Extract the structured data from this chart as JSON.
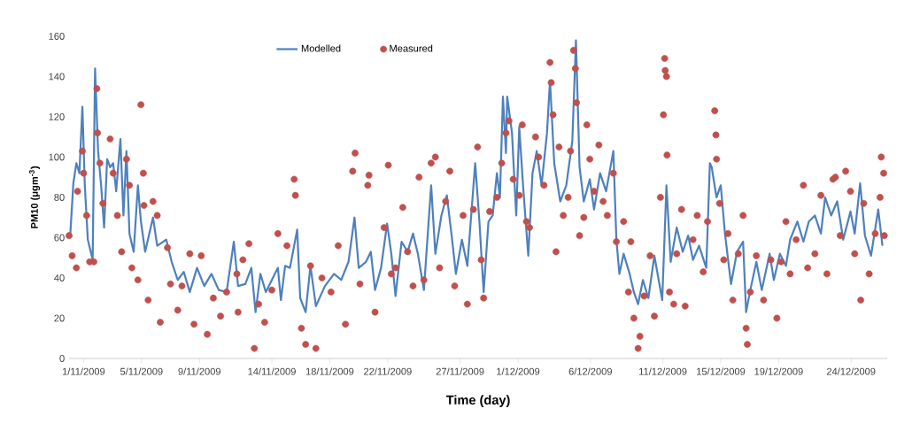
{
  "chart_data": {
    "type": "line",
    "xlabel": "Time  (day)",
    "ylabel": "PM10 (μgm$^{-3}$)",
    "xlim": [
      "2009-10-31T00:00",
      "2009-12-26T12:00"
    ],
    "ylim": [
      0,
      160
    ],
    "yticks": [
      0,
      20,
      40,
      60,
      80,
      100,
      120,
      140,
      160
    ],
    "xticks": [
      {
        "value": "2009-11-01",
        "label": "1/11/2009"
      },
      {
        "value": "2009-11-05",
        "label": "5/11/2009"
      },
      {
        "value": "2009-11-09",
        "label": "9/11/2009"
      },
      {
        "value": "2009-11-14",
        "label": "14/11/2009"
      },
      {
        "value": "2009-11-18",
        "label": "18/11/2009"
      },
      {
        "value": "2009-11-22",
        "label": "22/11/2009"
      },
      {
        "value": "2009-11-27",
        "label": "27/11/2009"
      },
      {
        "value": "2009-12-01",
        "label": "1/12/2009"
      },
      {
        "value": "2009-12-06",
        "label": "6/12/2009"
      },
      {
        "value": "2009-12-11",
        "label": "11/12/2009"
      },
      {
        "value": "2009-12-15",
        "label": "15/12/2009"
      },
      {
        "value": "2009-12-19",
        "label": "19/12/2009"
      },
      {
        "value": "2009-12-24",
        "label": "24/12/2009"
      }
    ],
    "legend": "top",
    "series": [
      {
        "name": "Modelled",
        "color": "#4f81bd",
        "line_style": "solid",
        "x": [
          "2009-10-31T02:00",
          "2009-10-31T07:00",
          "2009-10-31T12:00",
          "2009-10-31T17:00",
          "2009-10-31T22:00",
          "2009-11-01T02:00",
          "2009-11-01T07:00",
          "2009-11-01T15:00",
          "2009-11-01T19:00",
          "2009-11-02T00:00",
          "2009-11-02T05:00",
          "2009-11-02T10:00",
          "2009-11-02T15:00",
          "2009-11-02T20:00",
          "2009-11-03T01:00",
          "2009-11-03T06:00",
          "2009-11-03T13:00",
          "2009-11-03T18:00",
          "2009-11-03T23:00",
          "2009-11-04T04:00",
          "2009-11-04T11:00",
          "2009-11-04T18:00",
          "2009-11-04T23:00",
          "2009-11-05T06:00",
          "2009-11-05T19:00",
          "2009-11-06T02:00",
          "2009-11-06T17:00",
          "2009-11-07T02:00",
          "2009-11-07T12:00",
          "2009-11-07T22:00",
          "2009-11-08T08:00",
          "2009-11-08T20:00",
          "2009-11-09T08:00",
          "2009-11-09T20:00",
          "2009-11-10T08:00",
          "2009-11-10T21:00",
          "2009-11-11T09:00",
          "2009-11-11T16:00",
          "2009-11-12T04:00",
          "2009-11-12T14:00",
          "2009-11-12T21:00",
          "2009-11-13T05:00",
          "2009-11-13T14:00",
          "2009-11-14T00:00",
          "2009-11-14T10:00",
          "2009-11-14T15:00",
          "2009-11-14T22:00",
          "2009-11-15T06:00",
          "2009-11-15T18:00",
          "2009-11-15T23:00",
          "2009-11-16T08:00",
          "2009-11-16T16:00",
          "2009-11-17T01:00",
          "2009-11-17T16:00",
          "2009-11-18T07:00",
          "2009-11-18T19:00",
          "2009-11-19T07:00",
          "2009-11-19T17:00",
          "2009-11-20T00:00",
          "2009-11-20T12:00",
          "2009-11-20T20:00",
          "2009-11-21T03:00",
          "2009-11-21T13:00",
          "2009-11-21T23:00",
          "2009-11-22T06:00",
          "2009-11-22T13:00",
          "2009-11-22T23:00",
          "2009-11-23T09:00",
          "2009-11-23T18:00",
          "2009-11-24T02:00",
          "2009-11-24T12:00",
          "2009-11-25T00:00",
          "2009-11-25T07:00",
          "2009-11-25T17:00",
          "2009-11-26T02:00",
          "2009-11-26T10:00",
          "2009-11-26T17:00",
          "2009-11-27T03:00",
          "2009-11-27T12:00",
          "2009-11-28T01:00",
          "2009-11-28T08:00",
          "2009-11-28T15:00",
          "2009-11-28T23:00",
          "2009-11-29T06:00",
          "2009-11-29T13:00",
          "2009-11-29T18:00",
          "2009-11-29T23:00",
          "2009-11-30T04:00",
          "2009-11-30T06:00",
          "2009-11-30T14:00",
          "2009-11-30T21:00",
          "2009-12-01T02:00",
          "2009-12-01T09:00",
          "2009-12-01T17:00",
          "2009-12-02T00:00",
          "2009-12-02T07:00",
          "2009-12-02T15:00",
          "2009-12-03T00:00",
          "2009-12-03T05:00",
          "2009-12-03T12:00",
          "2009-12-03T22:00",
          "2009-12-04T08:00",
          "2009-12-04T18:00",
          "2009-12-05T00:00",
          "2009-12-05T06:00",
          "2009-12-05T13:00",
          "2009-12-05T23:00",
          "2009-12-06T06:00",
          "2009-12-06T16:00",
          "2009-12-07T02:00",
          "2009-12-07T14:00",
          "2009-12-07T19:00",
          "2009-12-08T00:00",
          "2009-12-08T07:00",
          "2009-12-08T17:00",
          "2009-12-09T00:00",
          "2009-12-09T07:00",
          "2009-12-09T15:00",
          "2009-12-10T00:00",
          "2009-12-10T10:00",
          "2009-12-10T23:00",
          "2009-12-11T06:00",
          "2009-12-11T13:00",
          "2009-12-11T23:00",
          "2009-12-12T09:00",
          "2009-12-12T18:00",
          "2009-12-13T02:00",
          "2009-12-13T12:00",
          "2009-12-14T00:00",
          "2009-12-14T06:00",
          "2009-12-14T09:00",
          "2009-12-14T17:00",
          "2009-12-15T00:00",
          "2009-12-15T07:00",
          "2009-12-15T17:00",
          "2009-12-16T03:00",
          "2009-12-16T13:00",
          "2009-12-16T18:00",
          "2009-12-17T01:00",
          "2009-12-17T11:00",
          "2009-12-17T20:00",
          "2009-12-18T09:00",
          "2009-12-18T16:00",
          "2009-12-19T02:00",
          "2009-12-19T12:00",
          "2009-12-19T19:00",
          "2009-12-20T07:00",
          "2009-12-20T17:00",
          "2009-12-21T02:00",
          "2009-12-21T12:00",
          "2009-12-21T22:00",
          "2009-12-22T05:00",
          "2009-12-22T15:00",
          "2009-12-23T01:00",
          "2009-12-23T11:00",
          "2009-12-23T23:00",
          "2009-12-24T06:00",
          "2009-12-24T15:00",
          "2009-12-24T23:00",
          "2009-12-25T09:00",
          "2009-12-25T21:00",
          "2009-12-26T04:00"
        ],
        "values": [
          62,
          87,
          97,
          92,
          125,
          86,
          59,
          49,
          144,
          103,
          86,
          65,
          99,
          95,
          97,
          83,
          109,
          71,
          103,
          62,
          53,
          86,
          68,
          53,
          70,
          56,
          59,
          48,
          39,
          43,
          33,
          45,
          36,
          42,
          34,
          33,
          58,
          36,
          37,
          45,
          23,
          42,
          33,
          39,
          45,
          29,
          46,
          45,
          64,
          30,
          23,
          46,
          26,
          36,
          42,
          39,
          48,
          70,
          45,
          48,
          53,
          34,
          45,
          67,
          52,
          31,
          58,
          53,
          62,
          52,
          34,
          86,
          52,
          71,
          81,
          61,
          42,
          59,
          46,
          97,
          68,
          33,
          68,
          71,
          92,
          80,
          130,
          102,
          130,
          112,
          71,
          115,
          83,
          51,
          92,
          103,
          86,
          112,
          138,
          97,
          78,
          86,
          108,
          158,
          95,
          78,
          89,
          74,
          92,
          83,
          103,
          59,
          42,
          52,
          42,
          33,
          27,
          39,
          30,
          51,
          29,
          86,
          48,
          65,
          53,
          61,
          49,
          56,
          45,
          97,
          95,
          80,
          86,
          62,
          37,
          53,
          58,
          23,
          34,
          48,
          34,
          52,
          39,
          52,
          46,
          59,
          68,
          58,
          68,
          71,
          62,
          80,
          71,
          78,
          59,
          73,
          62,
          87,
          61,
          51,
          74,
          56
        ]
      },
      {
        "name": "Measured",
        "type": "scatter",
        "color": "#c0504d",
        "marker": "circle",
        "x": [
          "2009-10-31T00:00",
          "2009-10-31T05:00",
          "2009-10-31T12:00",
          "2009-10-31T14:00",
          "2009-10-31T22:00",
          "2009-11-01T00:00",
          "2009-11-01T05:00",
          "2009-11-01T10:00",
          "2009-11-01T17:00",
          "2009-11-01T22:00",
          "2009-11-01T23:00",
          "2009-11-02T03:00",
          "2009-11-02T08:00",
          "2009-11-02T20:00",
          "2009-11-03T01:00",
          "2009-11-03T08:00",
          "2009-11-03T15:00",
          "2009-11-03T23:00",
          "2009-11-04T04:00",
          "2009-11-04T08:00",
          "2009-11-04T18:00",
          "2009-11-04T23:00",
          "2009-11-05T03:00",
          "2009-11-05T04:00",
          "2009-11-05T11:00",
          "2009-11-05T19:00",
          "2009-11-06T02:00",
          "2009-11-06T07:00",
          "2009-11-06T19:00",
          "2009-11-07T00:00",
          "2009-11-07T12:00",
          "2009-11-07T19:00",
          "2009-11-08T08:00",
          "2009-11-08T15:00",
          "2009-11-09T03:00",
          "2009-11-09T13:00",
          "2009-11-09T23:00",
          "2009-11-10T11:00",
          "2009-11-10T21:00",
          "2009-11-11T14:00",
          "2009-11-11T16:00",
          "2009-11-12T00:00",
          "2009-11-12T10:00",
          "2009-11-12T19:00",
          "2009-11-13T02:00",
          "2009-11-13T12:00",
          "2009-11-14T00:00",
          "2009-11-14T10:00",
          "2009-11-15T01:00",
          "2009-11-15T13:00",
          "2009-11-15T15:00",
          "2009-11-16T01:00",
          "2009-11-16T08:00",
          "2009-11-16T16:00",
          "2009-11-17T01:00",
          "2009-11-17T11:00",
          "2009-11-18T02:00",
          "2009-11-18T14:00",
          "2009-11-19T02:00",
          "2009-11-19T14:00",
          "2009-11-19T18:00",
          "2009-11-20T02:00",
          "2009-11-20T15:00",
          "2009-11-20T17:00",
          "2009-11-21T03:00",
          "2009-11-21T18:00",
          "2009-11-22T01:00",
          "2009-11-22T06:00",
          "2009-11-22T13:00",
          "2009-11-23T01:00",
          "2009-11-23T09:00",
          "2009-11-23T18:00",
          "2009-11-24T04:00",
          "2009-11-24T12:00",
          "2009-11-25T00:00",
          "2009-11-25T07:00",
          "2009-11-25T14:00",
          "2009-11-26T00:00",
          "2009-11-26T07:00",
          "2009-11-26T15:00",
          "2009-11-27T05:00",
          "2009-11-27T12:00",
          "2009-11-27T22:00",
          "2009-11-28T05:00",
          "2009-11-28T11:00",
          "2009-11-28T15:00",
          "2009-11-29T01:00",
          "2009-11-29T13:00",
          "2009-11-29T21:00",
          "2009-11-30T04:00",
          "2009-11-30T09:00",
          "2009-11-30T16:00",
          "2009-12-01T02:00",
          "2009-12-01T07:00",
          "2009-12-01T14:00",
          "2009-12-01T19:00",
          "2009-12-02T05:00",
          "2009-12-02T10:00",
          "2009-12-02T19:00",
          "2009-12-03T05:00",
          "2009-12-03T07:00",
          "2009-12-03T10:00",
          "2009-12-03T15:00",
          "2009-12-03T20:00",
          "2009-12-04T03:00",
          "2009-12-04T11:00",
          "2009-12-04T15:00",
          "2009-12-04T20:00",
          "2009-12-04T23:00",
          "2009-12-05T01:00",
          "2009-12-05T06:00",
          "2009-12-05T13:00",
          "2009-12-05T18:00",
          "2009-12-05T23:00",
          "2009-12-06T06:00",
          "2009-12-06T14:00",
          "2009-12-06T21:00",
          "2009-12-07T04:00",
          "2009-12-07T14:00",
          "2009-12-07T19:00",
          "2009-12-08T07:00",
          "2009-12-08T15:00",
          "2009-12-08T19:00",
          "2009-12-09T00:00",
          "2009-12-09T07:00",
          "2009-12-09T10:00",
          "2009-12-09T17:00",
          "2009-12-10T03:00",
          "2009-12-10T10:00",
          "2009-12-10T20:00",
          "2009-12-11T01:00",
          "2009-12-11T03:00",
          "2009-12-11T04:00",
          "2009-12-11T06:00",
          "2009-12-11T07:00",
          "2009-12-11T11:00",
          "2009-12-11T18:00",
          "2009-12-11T23:00",
          "2009-12-12T07:00",
          "2009-12-12T13:00",
          "2009-12-13T02:00",
          "2009-12-13T09:00",
          "2009-12-13T19:00",
          "2009-12-14T02:00",
          "2009-12-14T14:00",
          "2009-12-14T16:00",
          "2009-12-14T17:00",
          "2009-12-14T22:00",
          "2009-12-15T05:00",
          "2009-12-15T12:00",
          "2009-12-15T20:00",
          "2009-12-16T05:00",
          "2009-12-16T13:00",
          "2009-12-16T18:00",
          "2009-12-16T20:00",
          "2009-12-17T01:00",
          "2009-12-17T11:00",
          "2009-12-17T23:00",
          "2009-12-18T11:00",
          "2009-12-18T21:00",
          "2009-12-19T04:00",
          "2009-12-19T12:00",
          "2009-12-19T19:00",
          "2009-12-20T05:00",
          "2009-12-20T17:00",
          "2009-12-21T00:00",
          "2009-12-21T12:00",
          "2009-12-21T22:00",
          "2009-12-22T08:00",
          "2009-12-22T18:00",
          "2009-12-22T22:00",
          "2009-12-23T06:00",
          "2009-12-23T15:00",
          "2009-12-23T23:00",
          "2009-12-24T06:00",
          "2009-12-24T16:00",
          "2009-12-24T21:00",
          "2009-12-25T06:00",
          "2009-12-25T16:00",
          "2009-12-26T00:00",
          "2009-12-26T02:00",
          "2009-12-26T06:00",
          "2009-12-26T07:00"
        ],
        "values": [
          61,
          51,
          45,
          83,
          103,
          92,
          71,
          48,
          48,
          134,
          112,
          97,
          77,
          109,
          92,
          71,
          53,
          99,
          86,
          45,
          39,
          126,
          92,
          76,
          29,
          78,
          71,
          18,
          55,
          37,
          24,
          36,
          52,
          17,
          51,
          12,
          30,
          21,
          33,
          42,
          23,
          49,
          57,
          5,
          27,
          18,
          34,
          62,
          56,
          89,
          81,
          15,
          7,
          46,
          5,
          40,
          33,
          56,
          17,
          93,
          102,
          37,
          86,
          91,
          23,
          65,
          96,
          42,
          45,
          75,
          53,
          36,
          90,
          39,
          97,
          100,
          45,
          78,
          93,
          36,
          71,
          27,
          74,
          105,
          49,
          30,
          73,
          80,
          97,
          112,
          118,
          89,
          81,
          116,
          68,
          65,
          110,
          100,
          86,
          147,
          137,
          121,
          53,
          105,
          71,
          80,
          103,
          153,
          144,
          127,
          61,
          70,
          116,
          99,
          83,
          106,
          78,
          71,
          92,
          58,
          68,
          33,
          58,
          20,
          5,
          11,
          31,
          51,
          21,
          80,
          121,
          149,
          143,
          140,
          101,
          33,
          27,
          52,
          74,
          26,
          59,
          71,
          43,
          68,
          123,
          111,
          99,
          77,
          49,
          62,
          29,
          52,
          71,
          15,
          7,
          33,
          51,
          29,
          49,
          20,
          48,
          68,
          42,
          59,
          86,
          45,
          52,
          81,
          42,
          89,
          90,
          61,
          93,
          83,
          52,
          29,
          77,
          42,
          62,
          80,
          100,
          92,
          61
        ]
      }
    ]
  }
}
